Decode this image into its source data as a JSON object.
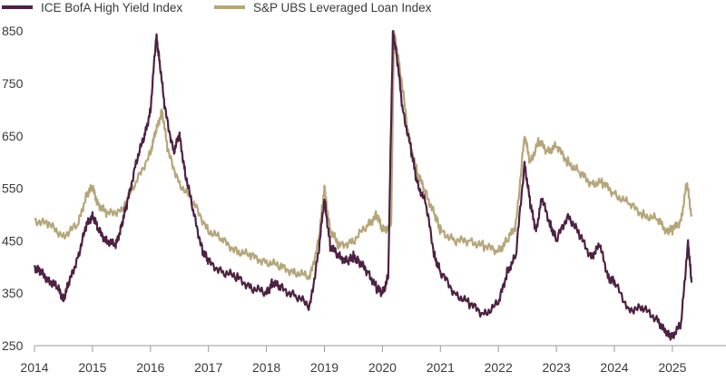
{
  "chart_data": {
    "type": "line",
    "title": "",
    "xlabel": "",
    "ylabel": "",
    "xlim": [
      2014,
      2025.35
    ],
    "ylim": [
      250,
      850
    ],
    "x_ticks": [
      "2014",
      "2015",
      "2016",
      "2017",
      "2018",
      "2019",
      "2020",
      "2021",
      "2022",
      "2023",
      "2024",
      "2025"
    ],
    "y_ticks": [
      "250",
      "350",
      "450",
      "550",
      "650",
      "750",
      "850"
    ],
    "grid": false,
    "legend": "top-left",
    "series": [
      {
        "name": "ICE BofA High Yield Index",
        "color": "#4e2142",
        "x": [
          2014.0,
          2014.1,
          2014.25,
          2014.4,
          2014.5,
          2014.6,
          2014.75,
          2014.9,
          2015.0,
          2015.1,
          2015.25,
          2015.4,
          2015.5,
          2015.6,
          2015.75,
          2015.9,
          2016.0,
          2016.1,
          2016.15,
          2016.25,
          2016.4,
          2016.5,
          2016.6,
          2016.75,
          2016.9,
          2017.0,
          2017.25,
          2017.5,
          2017.75,
          2018.0,
          2018.1,
          2018.25,
          2018.5,
          2018.75,
          2018.9,
          2019.0,
          2019.1,
          2019.25,
          2019.4,
          2019.5,
          2019.6,
          2019.75,
          2019.9,
          2020.0,
          2020.1,
          2020.18,
          2020.25,
          2020.35,
          2020.5,
          2020.6,
          2020.75,
          2020.9,
          2021.0,
          2021.25,
          2021.5,
          2021.75,
          2022.0,
          2022.15,
          2022.3,
          2022.45,
          2022.55,
          2022.65,
          2022.75,
          2022.9,
          2023.0,
          2023.2,
          2023.4,
          2023.6,
          2023.75,
          2023.9,
          2024.0,
          2024.25,
          2024.5,
          2024.75,
          2024.9,
          2025.0,
          2025.15,
          2025.27,
          2025.33
        ],
        "values": [
          400,
          390,
          375,
          360,
          340,
          370,
          420,
          480,
          500,
          470,
          450,
          440,
          480,
          520,
          600,
          650,
          700,
          840,
          800,
          700,
          620,
          650,
          580,
          500,
          430,
          410,
          390,
          380,
          360,
          350,
          370,
          360,
          345,
          325,
          430,
          530,
          440,
          420,
          410,
          420,
          410,
          390,
          360,
          350,
          380,
          850,
          800,
          700,
          620,
          560,
          520,
          420,
          390,
          350,
          330,
          310,
          330,
          390,
          420,
          600,
          520,
          470,
          530,
          480,
          450,
          500,
          460,
          420,
          440,
          380,
          370,
          320,
          320,
          300,
          270,
          270,
          290,
          450,
          370
        ]
      },
      {
        "name": "S&P UBS Leveraged Loan Index",
        "color": "#b5a67a",
        "x": [
          2014.0,
          2014.25,
          2014.5,
          2014.75,
          2014.9,
          2015.0,
          2015.1,
          2015.25,
          2015.5,
          2015.75,
          2016.0,
          2016.1,
          2016.2,
          2016.3,
          2016.5,
          2016.75,
          2017.0,
          2017.25,
          2017.5,
          2017.75,
          2018.0,
          2018.25,
          2018.5,
          2018.75,
          2018.9,
          2019.0,
          2019.1,
          2019.25,
          2019.5,
          2019.75,
          2019.9,
          2020.0,
          2020.15,
          2020.2,
          2020.3,
          2020.45,
          2020.6,
          2020.75,
          2020.9,
          2021.0,
          2021.25,
          2021.5,
          2021.75,
          2022.0,
          2022.15,
          2022.3,
          2022.45,
          2022.55,
          2022.7,
          2022.85,
          2023.0,
          2023.2,
          2023.4,
          2023.6,
          2023.8,
          2024.0,
          2024.25,
          2024.5,
          2024.75,
          2024.9,
          2025.0,
          2025.15,
          2025.25,
          2025.33
        ],
        "values": [
          490,
          480,
          460,
          480,
          540,
          550,
          520,
          500,
          510,
          560,
          620,
          660,
          700,
          620,
          560,
          520,
          470,
          450,
          430,
          420,
          410,
          400,
          390,
          380,
          450,
          550,
          470,
          440,
          450,
          480,
          500,
          470,
          480,
          850,
          780,
          650,
          580,
          540,
          500,
          470,
          450,
          450,
          440,
          430,
          450,
          480,
          650,
          600,
          640,
          620,
          630,
          600,
          580,
          560,
          560,
          540,
          520,
          500,
          490,
          470,
          470,
          490,
          560,
          500
        ]
      }
    ]
  }
}
